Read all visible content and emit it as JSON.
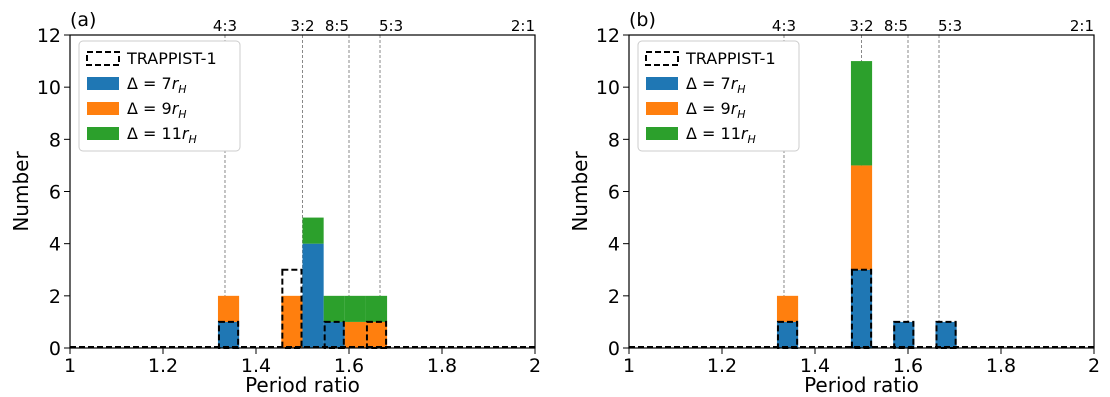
{
  "chart_data": [
    {
      "type": "bar",
      "panel_label": "(a)",
      "xlabel": "Period ratio",
      "ylabel": "Number",
      "xlim": [
        1,
        2
      ],
      "ylim": [
        0,
        12
      ],
      "xticks": [
        "1",
        "1.2",
        "1.4",
        "1.6",
        "1.8",
        "2"
      ],
      "yticks": [
        "0",
        "2",
        "4",
        "6",
        "8",
        "10",
        "12"
      ],
      "bin_width": 0.0455,
      "resonances": [
        {
          "label": "4:3",
          "x": 1.3333
        },
        {
          "label": "3:2",
          "x": 1.5
        },
        {
          "label": "8:5",
          "x": 1.6
        },
        {
          "label": "5:3",
          "x": 1.6667
        },
        {
          "label": "2:1",
          "x": 2.0
        }
      ],
      "legend": {
        "placement": "top-left",
        "entries": [
          {
            "text": "TRAPPIST-1",
            "style": "dashed-outline"
          },
          {
            "text": "Δ = 7r_H",
            "main": "Δ = 7",
            "sub": "H"
          },
          {
            "text": "Δ = 9r_H",
            "main": "Δ = 9",
            "sub": "H"
          },
          {
            "text": "Δ = 11r_H",
            "main": "Δ = 11",
            "sub": "H"
          }
        ]
      },
      "stacks": [
        {
          "x0": 1.3182,
          "blue": 1,
          "orange": 1,
          "green": 0
        },
        {
          "x0": 1.4545,
          "blue": 0,
          "orange": 2,
          "green": 0
        },
        {
          "x0": 1.5,
          "blue": 4,
          "orange": 0,
          "green": 1
        },
        {
          "x0": 1.5455,
          "blue": 1,
          "orange": 0,
          "green": 1
        },
        {
          "x0": 1.5909,
          "blue": 0,
          "orange": 1,
          "green": 1
        },
        {
          "x0": 1.6364,
          "blue": 0,
          "orange": 1,
          "green": 1
        }
      ],
      "trappist": [
        {
          "x0": 1.3182,
          "count": 1
        },
        {
          "x0": 1.4545,
          "count": 3
        },
        {
          "x0": 1.5455,
          "count": 1
        },
        {
          "x0": 1.6364,
          "count": 1
        }
      ]
    },
    {
      "type": "bar",
      "panel_label": "(b)",
      "xlabel": "Period ratio",
      "ylabel": "Number",
      "xlim": [
        1,
        2
      ],
      "ylim": [
        0,
        12
      ],
      "xticks": [
        "1",
        "1.2",
        "1.4",
        "1.6",
        "1.8",
        "2"
      ],
      "yticks": [
        "0",
        "2",
        "4",
        "6",
        "8",
        "10",
        "12"
      ],
      "bin_width": 0.0455,
      "resonances": [
        {
          "label": "4:3",
          "x": 1.3333
        },
        {
          "label": "3:2",
          "x": 1.5
        },
        {
          "label": "8:5",
          "x": 1.6
        },
        {
          "label": "5:3",
          "x": 1.6667
        },
        {
          "label": "2:1",
          "x": 2.0
        }
      ],
      "legend": {
        "placement": "top-left",
        "entries": [
          {
            "text": "TRAPPIST-1",
            "style": "dashed-outline"
          },
          {
            "text": "Δ = 7r_H",
            "main": "Δ = 7",
            "sub": "H"
          },
          {
            "text": "Δ = 9r_H",
            "main": "Δ = 9",
            "sub": "H"
          },
          {
            "text": "Δ = 11r_H",
            "main": "Δ = 11",
            "sub": "H"
          }
        ]
      },
      "stacks": [
        {
          "x0": 1.3182,
          "blue": 1,
          "orange": 1,
          "green": 0
        },
        {
          "x0": 1.4773,
          "blue": 3,
          "orange": 4,
          "green": 4
        },
        {
          "x0": 1.5682,
          "blue": 1,
          "orange": 0,
          "green": 0
        },
        {
          "x0": 1.6591,
          "blue": 1,
          "orange": 0,
          "green": 0
        }
      ],
      "trappist": [
        {
          "x0": 1.3182,
          "count": 1
        },
        {
          "x0": 1.4773,
          "count": 3
        },
        {
          "x0": 1.5682,
          "count": 1
        },
        {
          "x0": 1.6591,
          "count": 1
        }
      ]
    }
  ],
  "colors": {
    "blue": "#1f77b4",
    "orange": "#ff7f0e",
    "green": "#2ca02c",
    "grid": "#888888"
  }
}
